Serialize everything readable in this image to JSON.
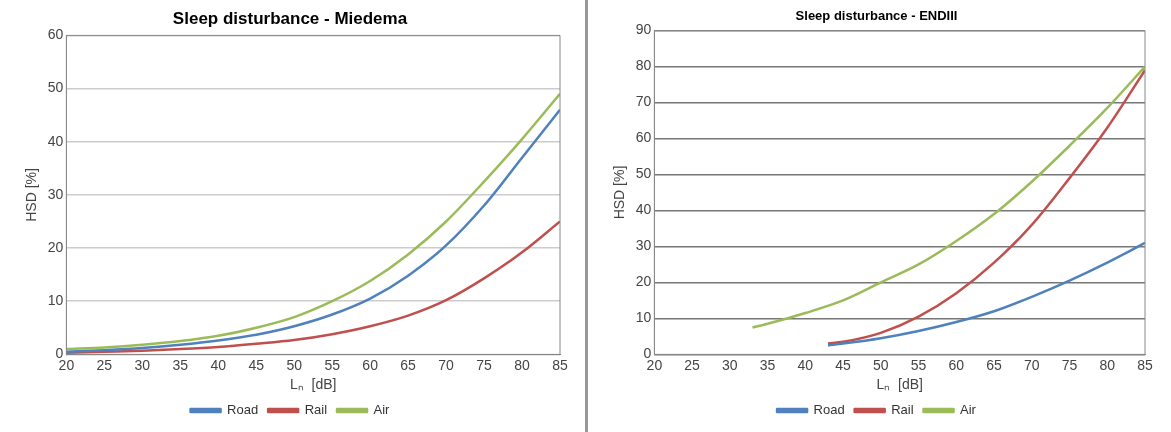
{
  "chart_data": [
    {
      "type": "line",
      "title": "Sleep disturbance - Miedema",
      "xlabel": "Lₙ  [dB]",
      "ylabel": "HSD [%]",
      "xlim": [
        20,
        85
      ],
      "xticks": [
        20,
        25,
        30,
        35,
        40,
        45,
        50,
        55,
        60,
        65,
        70,
        75,
        80,
        85
      ],
      "ylim": [
        0,
        60
      ],
      "yticks": [
        0,
        10,
        20,
        30,
        40,
        50,
        60
      ],
      "grid": "y",
      "legend": "bottom",
      "marker": "none",
      "series": [
        {
          "name": "Road",
          "color": "#4f81bd",
          "x": [
            20,
            25,
            30,
            35,
            40,
            45,
            50,
            55,
            60,
            65,
            70,
            75,
            80,
            85
          ],
          "values": [
            0.5,
            0.8,
            1.2,
            1.8,
            2.6,
            3.7,
            5.3,
            7.5,
            10.5,
            14.8,
            20.5,
            28,
            37,
            46
          ]
        },
        {
          "name": "Rail",
          "color": "#c0504d",
          "x": [
            20,
            25,
            30,
            35,
            40,
            45,
            50,
            55,
            60,
            65,
            70,
            75,
            80,
            85
          ],
          "values": [
            0.3,
            0.5,
            0.7,
            1,
            1.4,
            2,
            2.7,
            3.8,
            5.3,
            7.3,
            10.2,
            14.3,
            19.2,
            25
          ]
        },
        {
          "name": "Air",
          "color": "#9bbb59",
          "x": [
            20,
            25,
            30,
            35,
            40,
            45,
            50,
            55,
            60,
            65,
            70,
            75,
            80,
            85
          ],
          "values": [
            1,
            1.3,
            1.8,
            2.5,
            3.5,
            5,
            7,
            10,
            13.8,
            18.8,
            25,
            32.5,
            40.5,
            49
          ]
        }
      ]
    },
    {
      "type": "line",
      "title": "Sleep disturbance - ENDIII",
      "xlabel": "Lₙ  [dB]",
      "ylabel": "HSD [%]",
      "xlim": [
        20,
        85
      ],
      "xticks": [
        20,
        25,
        30,
        35,
        40,
        45,
        50,
        55,
        60,
        65,
        70,
        75,
        80,
        85
      ],
      "ylim": [
        0,
        90
      ],
      "yticks": [
        0,
        10,
        20,
        30,
        40,
        50,
        60,
        70,
        80,
        90
      ],
      "grid": "y",
      "legend": "bottom",
      "marker": "none",
      "series": [
        {
          "name": "Road",
          "color": "#4f81bd",
          "x": [
            43,
            45,
            50,
            55,
            60,
            65,
            70,
            75,
            80,
            85
          ],
          "values": [
            2.5,
            3,
            4.5,
            6.5,
            9,
            12,
            16,
            20.5,
            25.5,
            31
          ]
        },
        {
          "name": "Rail",
          "color": "#c0504d",
          "x": [
            43,
            45,
            50,
            55,
            60,
            65,
            70,
            75,
            80,
            85
          ],
          "values": [
            3,
            3.5,
            6,
            10.5,
            17,
            25.5,
            36,
            49,
            63,
            79
          ]
        },
        {
          "name": "Air",
          "color": "#9bbb59",
          "x": [
            33,
            35,
            40,
            45,
            50,
            55,
            60,
            65,
            70,
            75,
            80,
            85
          ],
          "values": [
            7.5,
            8.5,
            11.5,
            15,
            20,
            25,
            31.5,
            39,
            48,
            58,
            68.5,
            80
          ]
        }
      ]
    }
  ]
}
